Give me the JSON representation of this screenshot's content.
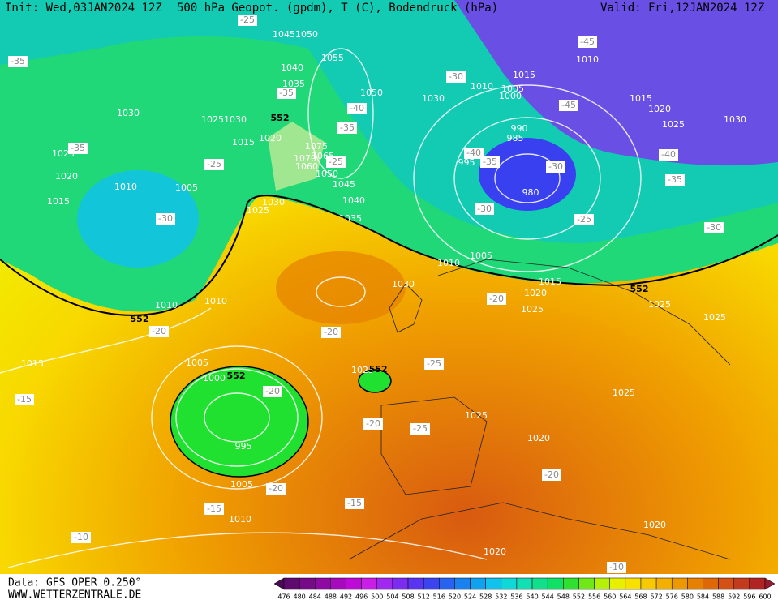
{
  "header": {
    "init": "Init: Wed,03JAN2024 12Z",
    "title": "500 hPa Geopot. (gpdm), T (C), Bodendruck (hPa)",
    "valid": "Valid: Fri,12JAN2024 12Z"
  },
  "footer": {
    "data": "Data: GFS OPER 0.250°",
    "site": "WWW.WETTERZENTRALE.DE"
  },
  "isobar_labels": [
    1045,
    1050,
    1040,
    1055,
    1035,
    1050,
    1030,
    1025,
    1030,
    1015,
    1020,
    1075,
    1070,
    1065,
    1060,
    1050,
    1045,
    1040,
    1035,
    1030,
    1025,
    1025,
    1020,
    1010,
    1005,
    1015,
    1010,
    1010,
    1005,
    1000,
    995,
    1005,
    1010,
    1015,
    1025,
    1030,
    1010,
    1005,
    1015,
    1020,
    1025,
    1025,
    1025,
    1025,
    1025,
    1020,
    1020,
    1020,
    1030,
    1010,
    1005,
    1000,
    1015,
    1010,
    1015,
    1020,
    1025,
    1030,
    990,
    985,
    995,
    980
  ],
  "temperature_labels": [
    -35,
    -35,
    -25,
    -30,
    -20,
    -15,
    -20,
    -20,
    -15,
    -10,
    -15,
    -20,
    -25,
    -25,
    -20,
    -20,
    -20,
    -10,
    -30,
    -25,
    -35,
    -40,
    -30,
    -30,
    -45,
    -45,
    -40,
    -35,
    -30,
    -25,
    -35,
    -40,
    -35,
    -25
  ],
  "geopotential_labels": [
    552,
    552,
    552,
    552,
    552
  ],
  "scale": {
    "labels": [
      476,
      480,
      484,
      488,
      492,
      496,
      500,
      504,
      508,
      512,
      516,
      520,
      524,
      528,
      532,
      536,
      540,
      544,
      548,
      552,
      556,
      560,
      564,
      568,
      572,
      576,
      580,
      584,
      588,
      592,
      596,
      600
    ],
    "colors": [
      "#4a0a55",
      "#5e0a6e",
      "#760a88",
      "#8e0aa2",
      "#a60abc",
      "#be0ad6",
      "#c81ee8",
      "#a028f0",
      "#7c2cf0",
      "#5a34f0",
      "#3c44f0",
      "#2862f0",
      "#1a82f0",
      "#10a2f0",
      "#10c2ec",
      "#10d8d8",
      "#10e0b4",
      "#10e08c",
      "#10e064",
      "#30e030",
      "#70e818",
      "#b4f008",
      "#e8f000",
      "#f8e000",
      "#f8c800",
      "#f4b000",
      "#ee9800",
      "#e68000",
      "#de6808",
      "#d45014",
      "#c43a1c",
      "#b02424",
      "#961a30"
    ]
  }
}
